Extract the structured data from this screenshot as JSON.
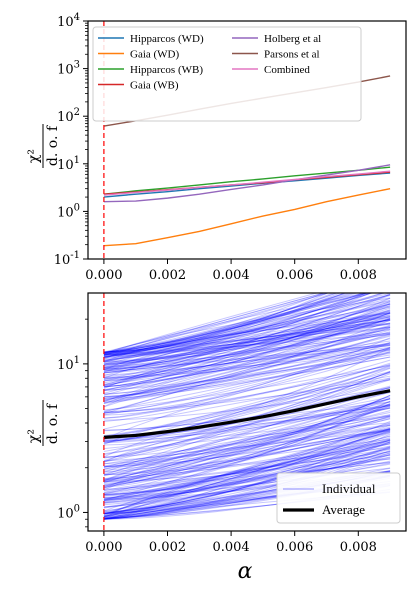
{
  "chart_data": [
    {
      "type": "line",
      "yscale": "log",
      "ylim": [
        0.1,
        10000
      ],
      "xlim": [
        -0.0005,
        0.0095
      ],
      "xticks": [
        "0.000",
        "0.002",
        "0.004",
        "0.006",
        "0.008"
      ],
      "yticks": [
        "10^{-1}",
        "10^0",
        "10^1",
        "10^2",
        "10^3",
        "10^4"
      ],
      "ylabel_num": "χ²",
      "ylabel_den": "d. o. f",
      "reference_line_x": 0.0,
      "legend_location": "upper-left",
      "x": [
        0.0,
        0.001,
        0.002,
        0.003,
        0.004,
        0.005,
        0.006,
        0.007,
        0.008,
        0.009
      ],
      "series": [
        {
          "name": "Hipparcos (WD)",
          "color": "#1f77b4",
          "values": [
            2.0,
            2.3,
            2.6,
            3.0,
            3.4,
            3.9,
            4.4,
            5.0,
            5.7,
            6.4
          ]
        },
        {
          "name": "Gaia (WD)",
          "color": "#ff7f0e",
          "values": [
            0.19,
            0.21,
            0.28,
            0.38,
            0.55,
            0.8,
            1.1,
            1.6,
            2.2,
            3.0
          ]
        },
        {
          "name": "Hipparcos (WB)",
          "color": "#2ca02c",
          "values": [
            2.3,
            2.7,
            3.1,
            3.6,
            4.2,
            4.8,
            5.6,
            6.4,
            7.3,
            8.5
          ]
        },
        {
          "name": "Gaia (WB)",
          "color": "#d62728",
          "values": [
            2.3,
            2.55,
            2.85,
            3.2,
            3.6,
            4.0,
            4.6,
            5.2,
            5.9,
            6.7
          ]
        },
        {
          "name": "Holberg et al",
          "color": "#9467bd",
          "values": [
            1.6,
            1.65,
            1.9,
            2.3,
            2.9,
            3.6,
            4.6,
            5.8,
            7.3,
            9.5
          ]
        },
        {
          "name": "Parsons et al",
          "color": "#8c564b",
          "values": [
            62,
            80,
            105,
            140,
            185,
            240,
            310,
            400,
            520,
            700
          ]
        },
        {
          "name": "Combined",
          "color": "#e377c2",
          "values": [
            2.2,
            2.5,
            2.8,
            3.2,
            3.6,
            4.1,
            4.7,
            5.4,
            6.1,
            7.0
          ]
        }
      ]
    },
    {
      "type": "line",
      "yscale": "log",
      "ylim": [
        0.75,
        30
      ],
      "xlim": [
        -0.0005,
        0.0095
      ],
      "xticks": [
        "0.000",
        "0.002",
        "0.004",
        "0.006",
        "0.008"
      ],
      "yticks": [
        "10^0",
        "10^1"
      ],
      "xlabel": "α",
      "ylabel_num": "χ²",
      "ylabel_den": "d. o. f",
      "reference_line_x": 0.0,
      "legend_location": "lower-right",
      "x": [
        0.0,
        0.001,
        0.002,
        0.003,
        0.004,
        0.005,
        0.006,
        0.007,
        0.008,
        0.009
      ],
      "series": [
        {
          "name": "Individual",
          "color": "#0000ff",
          "note_count": 300,
          "start_range": [
            0.9,
            12.0
          ],
          "end_range": [
            1.6,
            25.0
          ]
        },
        {
          "name": "Average",
          "color": "#000000",
          "values": [
            3.2,
            3.3,
            3.5,
            3.75,
            4.05,
            4.4,
            4.85,
            5.4,
            6.0,
            6.6
          ]
        }
      ]
    }
  ]
}
